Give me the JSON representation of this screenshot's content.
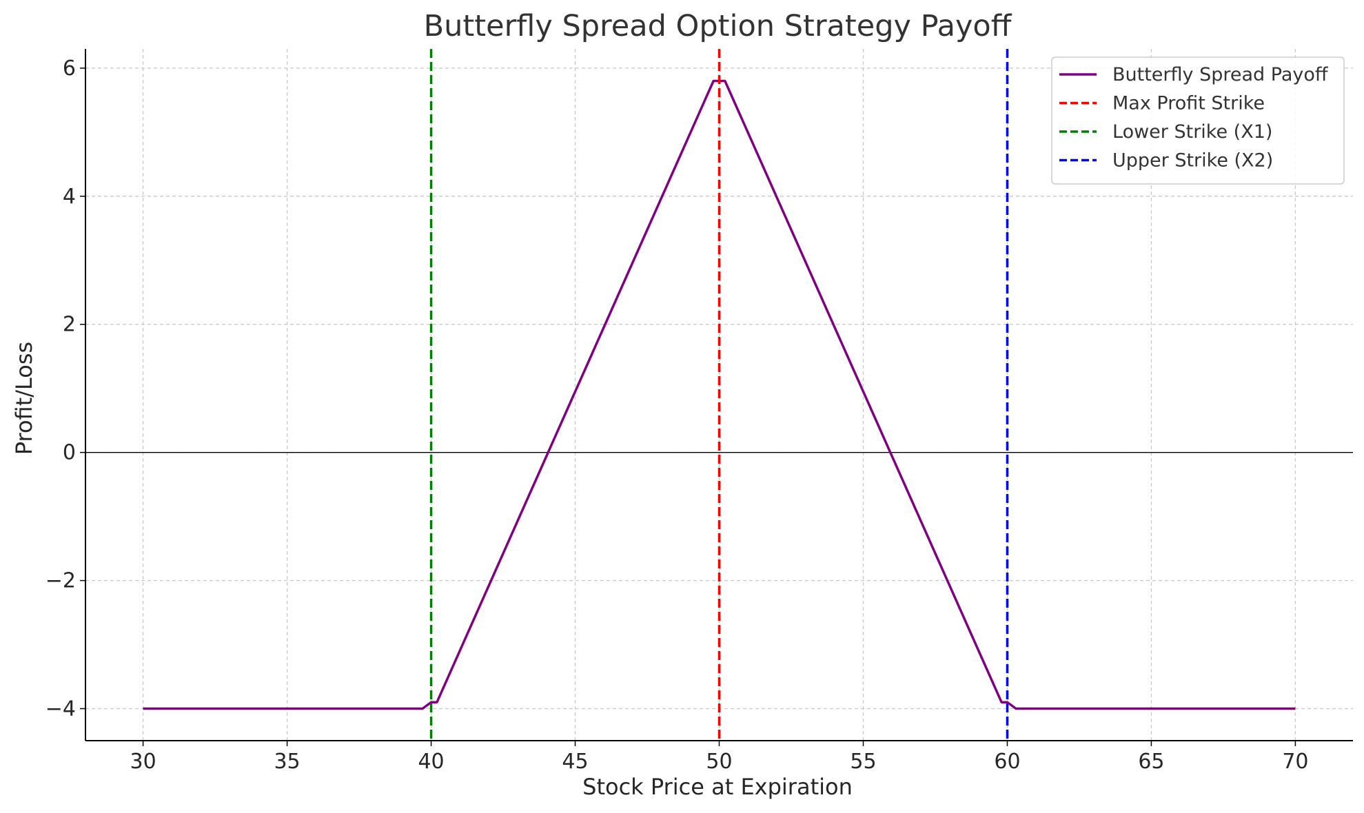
{
  "chart_data": {
    "type": "line",
    "title": "Butterfly Spread Option Strategy Payoff",
    "xlabel": "Stock Price at Expiration",
    "ylabel": "Profit/Loss",
    "xlim": [
      28,
      72
    ],
    "ylim": [
      -4.5,
      6.3
    ],
    "xticks": [
      30,
      35,
      40,
      45,
      50,
      55,
      60,
      65,
      70
    ],
    "xtick_labels": [
      "30",
      "35",
      "40",
      "45",
      "50",
      "55",
      "60",
      "65",
      "70"
    ],
    "yticks": [
      -4,
      -2,
      0,
      2,
      4,
      6
    ],
    "ytick_labels": [
      "−4",
      "−2",
      "0",
      "2",
      "4",
      "6"
    ],
    "grid": true,
    "legend_position": "top-right",
    "zero_line": 0,
    "series": [
      {
        "name": "Butterfly Spread Payoff",
        "style": "solid",
        "color": "#800080",
        "x": [
          30,
          39.7,
          40.0,
          40.2,
          49.8,
          50.2,
          59.8,
          60.0,
          60.3,
          70
        ],
        "y": [
          -4.0,
          -4.0,
          -3.9,
          -3.9,
          5.8,
          5.8,
          -3.9,
          -3.9,
          -4.0,
          -4.0
        ]
      }
    ],
    "vlines": [
      {
        "name": "Max Profit Strike",
        "x": 50,
        "color": "#ff0000",
        "style": "dashed"
      },
      {
        "name": "Lower Strike (X1)",
        "x": 40,
        "color": "#008000",
        "style": "dashed"
      },
      {
        "name": "Upper Strike (X2)",
        "x": 60,
        "color": "#0000ff",
        "style": "dashed"
      }
    ]
  }
}
